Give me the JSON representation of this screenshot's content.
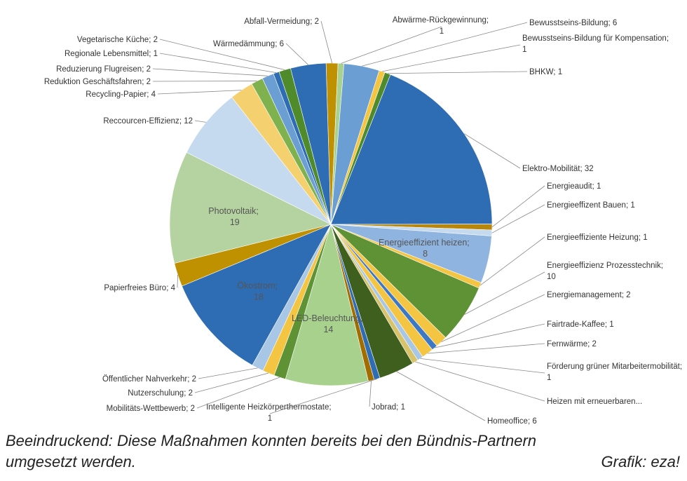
{
  "chart_data": {
    "type": "pie",
    "separator": "; ",
    "categories": [
      "Abfall-Vermeidung",
      "Abwärme-Rückgewinnung",
      "Bewusstseins-Bildung",
      "Bewusstseins-Bildung für Kompensation",
      "BHKW",
      "Elektro-Mobilität",
      "Energieaudit",
      "Energieeffizent Bauen",
      "Energieeffizient heizen",
      "Energieeffiziente Heizung",
      "Energieeffizienz Prozesstechnik",
      "Energiemanagement",
      "Fairtrade-Kaffee",
      "Fernwärme",
      "Förderung grüner Mitarbeitermobilität",
      "Heizen mit erneuerbaren...",
      "Homeoffice",
      "Intelligente Heizkörperthermostate",
      "Jobrad",
      "LED-Beleuchtung",
      "Mobilitäts-Wettbewerb",
      "Nutzerschulung",
      "Öffentlicher Nahverkehr",
      "Ökostrom",
      "Papierfreies Büro",
      "Photovoltaik",
      "Reccourcen-Effizienz",
      "Recycling-Papier",
      "Reduktion Geschäftsfahren",
      "Reduzierung Flugreisen",
      "Regionale Lebensmittel",
      "Vegetarische Küche",
      "Wärmedämmung"
    ],
    "values": [
      2,
      1,
      6,
      1,
      1,
      32,
      1,
      1,
      8,
      1,
      10,
      2,
      1,
      2,
      1,
      1,
      6,
      1,
      1,
      14,
      2,
      2,
      2,
      18,
      4,
      19,
      12,
      4,
      2,
      2,
      1,
      2,
      6
    ],
    "value_labels": [
      "2",
      "1",
      "6",
      "1",
      "1",
      "32",
      "1",
      "1",
      "8",
      "1",
      "10",
      "2",
      "1",
      "2",
      "1",
      null,
      "6",
      "1",
      "1",
      "14",
      "2",
      "2",
      "2",
      "18",
      "4",
      "19",
      "12",
      "4",
      "2",
      "2",
      "1",
      "2",
      "6"
    ],
    "colors": [
      "#bf9000",
      "#a9d18e",
      "#6b9fd4",
      "#f4c542",
      "#4f8a2b",
      "#2e6db4",
      "#b8860b",
      "#c5d9ef",
      "#8fb4e0",
      "#f4c542",
      "#5e9234",
      "#f4c542",
      "#3c78c4",
      "#f4c542",
      "#a8c7e6",
      "#d9c36a",
      "#3f5f1e",
      "#2e6db4",
      "#a16d00",
      "#a9d18e",
      "#5e9234",
      "#f4c542",
      "#a8c7e6",
      "#2e6db4",
      "#bf9000",
      "#b5d3a0",
      "#c5d9ef",
      "#f4d06f",
      "#7fb24f",
      "#6b9fd4",
      "#2e6db4",
      "#4f8a2b",
      "#2e6db4"
    ],
    "caption": [
      "Beeindruckend: Diese Maßnahmen konnten bereits bei den Bündnis-Partnern",
      "umgesetzt werden."
    ],
    "credit": "Grafik: eza!"
  }
}
